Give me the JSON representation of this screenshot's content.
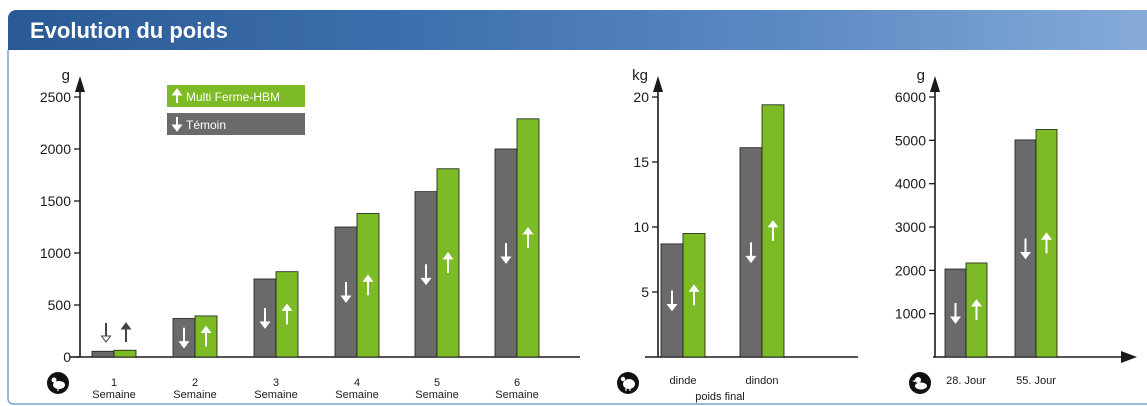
{
  "header": {
    "title": "Evolution du poids"
  },
  "legend": {
    "multi": {
      "label": "Multi Ferme-HBM",
      "color": "#7cbb25"
    },
    "temoin": {
      "label": "Témoin",
      "color": "#6a6a6a"
    }
  },
  "icons": [
    "chicken-icon",
    "turkey-icon",
    "duck-icon"
  ],
  "chart_data": [
    {
      "type": "bar",
      "ylabel": "g",
      "ylim": [
        0,
        2500
      ],
      "yticks": [
        "0",
        "500",
        "1000",
        "1500",
        "2000",
        "2500"
      ],
      "categories": [
        "1|Semaine",
        "2|Semaine",
        "3|Semaine",
        "4|Semaine",
        "5|Semaine",
        "6|Semaine"
      ],
      "series": [
        {
          "name": "Témoin",
          "color": "#6a6a6a",
          "values": [
            55,
            370,
            750,
            1250,
            1590,
            2000
          ]
        },
        {
          "name": "Multi Ferme-HBM",
          "color": "#7cbb25",
          "values": [
            65,
            395,
            820,
            1380,
            1810,
            2290
          ]
        }
      ],
      "icon": "chicken-icon"
    },
    {
      "type": "bar",
      "ylabel": "kg",
      "ylim": [
        0,
        20
      ],
      "yticks": [
        "5",
        "10",
        "15",
        "20"
      ],
      "categories": [
        "dinde",
        "dindon"
      ],
      "xlabel": "poids final",
      "series": [
        {
          "name": "Témoin",
          "color": "#6a6a6a",
          "values": [
            8.7,
            16.1
          ]
        },
        {
          "name": "Multi Ferme-HBM",
          "color": "#7cbb25",
          "values": [
            9.5,
            19.4
          ]
        }
      ],
      "icon": "turkey-icon"
    },
    {
      "type": "bar",
      "ylabel": "g",
      "ylim": [
        0,
        6000
      ],
      "yticks": [
        "1000",
        "2000",
        "3000",
        "4000",
        "5000",
        "6000"
      ],
      "categories": [
        "28. Jour",
        "55. Jour"
      ],
      "series": [
        {
          "name": "Témoin",
          "color": "#6a6a6a",
          "values": [
            2030,
            5010
          ]
        },
        {
          "name": "Multi Ferme-HBM",
          "color": "#7cbb25",
          "values": [
            2170,
            5250
          ]
        }
      ],
      "icon": "duck-icon"
    }
  ]
}
